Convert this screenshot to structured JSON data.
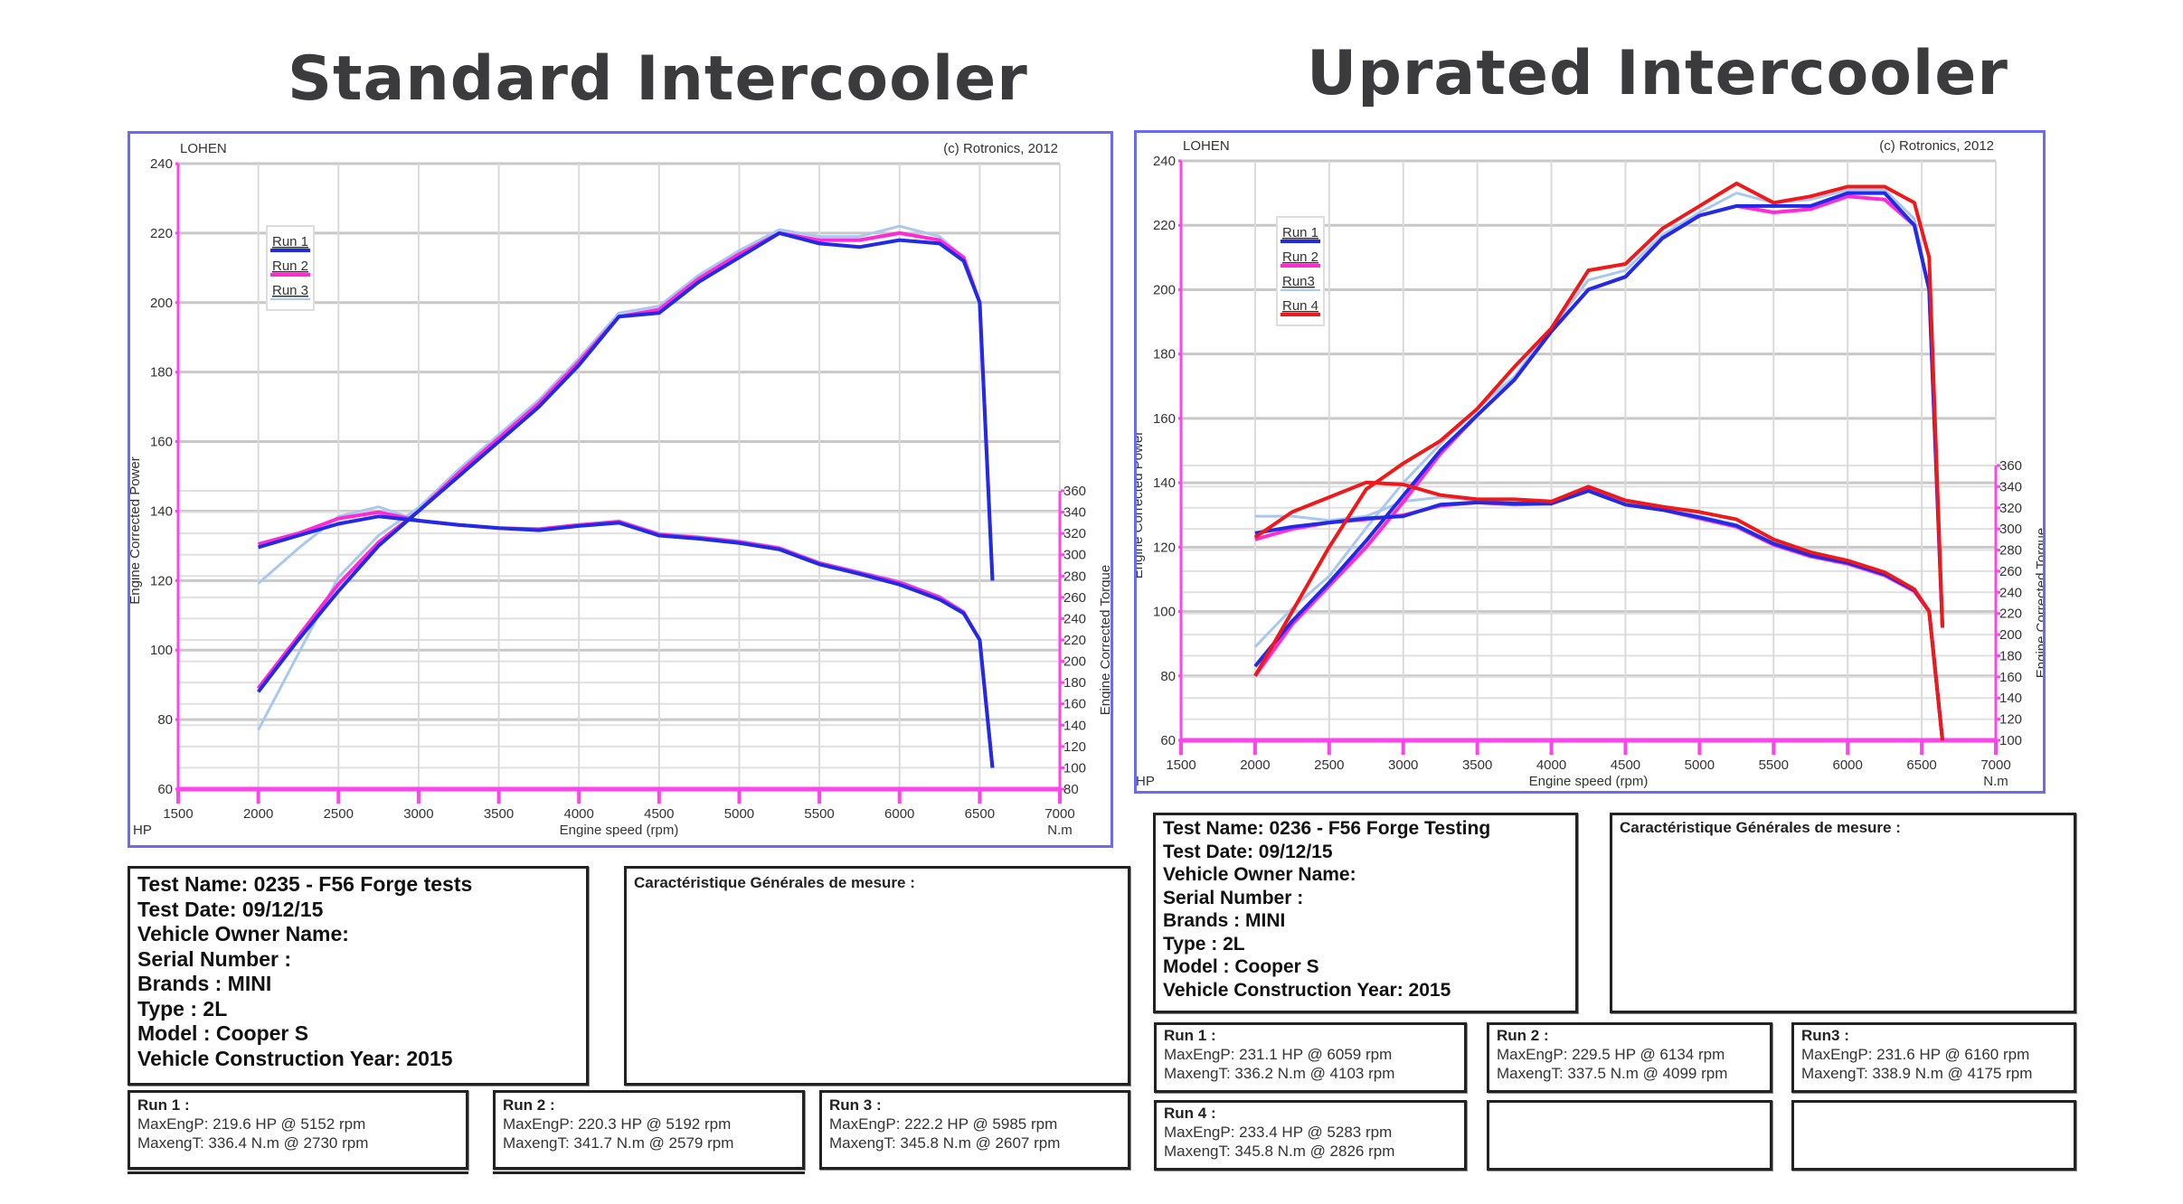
{
  "left": {
    "title": "Standard Intercooler",
    "chart": {
      "brand": "LOHEN",
      "copyright": "(c) Rotronics, 2012",
      "xlabel": "Engine speed (rpm)",
      "ylabel_left": "Engine Corrected Power",
      "ylabel_right": "Engine Corrected Torque",
      "unit_left": "HP",
      "unit_right": "N.m",
      "legend": [
        "Run 1",
        "Run 2",
        "Run 3"
      ]
    },
    "info": {
      "test_name": "Test Name: 0235 - F56 Forge tests",
      "test_date": "Test Date: 09/12/15",
      "owner": "Vehicle Owner Name:",
      "serial": "Serial Number  :",
      "brand": "Brands  : MINI",
      "type": "Type  : 2L",
      "model": "Model  : Cooper S",
      "year": "Vehicle Construction Year: 2015"
    },
    "characteristics_title": "Caractéristique Générales de mesure :",
    "runs": [
      {
        "title": "Run 1 :",
        "power": "MaxEngP: 219.6 HP @ 5152 rpm",
        "torque": "MaxengT: 336.4 N.m @ 2730 rpm"
      },
      {
        "title": "Run 2 :",
        "power": "MaxEngP: 220.3 HP @ 5192 rpm",
        "torque": "MaxengT: 341.7 N.m @ 2579 rpm"
      },
      {
        "title": "Run 3 :",
        "power": "MaxEngP: 222.2 HP @ 5985 rpm",
        "torque": "MaxengT: 345.8 N.m @ 2607 rpm"
      }
    ]
  },
  "right": {
    "title": "Uprated Intercooler",
    "chart": {
      "brand": "LOHEN",
      "copyright": "(c) Rotronics, 2012",
      "xlabel": "Engine speed (rpm)",
      "ylabel_left": "Engine Corrected Power",
      "ylabel_right": "Engine Corrected Torque",
      "unit_left": "HP",
      "unit_right": "N.m",
      "legend": [
        "Run 1",
        "Run 2",
        "Run3",
        "Run 4"
      ]
    },
    "info": {
      "test_name": "Test Name: 0236 - F56 Forge Testing",
      "test_date": "Test Date: 09/12/15",
      "owner": "Vehicle Owner Name:",
      "serial": "Serial Number  :",
      "brand": "Brands  : MINI",
      "type": "Type  : 2L",
      "model": "Model  : Cooper S",
      "year": "Vehicle Construction Year: 2015"
    },
    "characteristics_title": "Caractéristique Générales de mesure :",
    "runs": [
      {
        "title": "Run 1 :",
        "power": "MaxEngP: 231.1 HP @ 6059 rpm",
        "torque": "MaxengT: 336.2 N.m @ 4103 rpm"
      },
      {
        "title": "Run 2 :",
        "power": "MaxEngP: 229.5 HP @ 6134 rpm",
        "torque": "MaxengT: 337.5 N.m @ 4099 rpm"
      },
      {
        "title": "Run3 :",
        "power": "MaxEngP: 231.6 HP @ 6160 rpm",
        "torque": "MaxengT: 338.9 N.m @ 4175 rpm"
      },
      {
        "title": "Run 4 :",
        "power": "MaxEngP: 233.4 HP @ 5283 rpm",
        "torque": "MaxengT: 345.8 N.m @ 2826 rpm"
      }
    ]
  },
  "colors": {
    "run1": "#1f2be6",
    "run2": "#ff2ad4",
    "run3": "#a8c8f0",
    "run4": "#f01818",
    "axis": "#ff44ee",
    "frame": "#6a6af2",
    "grid": "#d0d0d0"
  },
  "chart_data": [
    {
      "type": "line",
      "title": "Standard Intercooler",
      "xlabel": "Engine speed (rpm)",
      "ylabel": "Engine Corrected Power (HP)",
      "y2label": "Engine Corrected Torque (N.m)",
      "xlim": [
        1500,
        7000
      ],
      "ylim": [
        60,
        240
      ],
      "y2lim": [
        80,
        360
      ],
      "x_ticks": [
        1500,
        2000,
        2500,
        3000,
        3500,
        4000,
        4500,
        5000,
        5500,
        6000,
        6500,
        7000
      ],
      "y_ticks": [
        60,
        80,
        100,
        120,
        140,
        160,
        180,
        200,
        220,
        240
      ],
      "y2_ticks": [
        80,
        100,
        120,
        140,
        160,
        180,
        200,
        220,
        240,
        260,
        280,
        300,
        320,
        340,
        360
      ],
      "grid": true,
      "legend_position": "upper-left",
      "x": [
        2000,
        2250,
        2500,
        2750,
        3000,
        3250,
        3500,
        3750,
        4000,
        4250,
        4500,
        4750,
        5000,
        5250,
        5500,
        5750,
        6000,
        6250,
        6400,
        6500,
        6580
      ],
      "series": [
        {
          "name": "Run 1 Power",
          "axis": "HP",
          "values": [
            88,
            103,
            117,
            130,
            140,
            150,
            160,
            170,
            182,
            196,
            197,
            206,
            213,
            220,
            217,
            216,
            218,
            217,
            212,
            200,
            120
          ]
        },
        {
          "name": "Run 2 Power",
          "axis": "HP",
          "values": [
            89,
            104,
            119,
            131,
            140,
            151,
            161,
            171,
            183,
            196,
            198,
            207,
            214,
            220,
            218,
            218,
            220,
            218,
            213,
            200,
            120
          ]
        },
        {
          "name": "Run 3 Power",
          "axis": "HP",
          "values": [
            77,
            99,
            121,
            133,
            141,
            152,
            162,
            172,
            184,
            197,
            199,
            208,
            215,
            221,
            219,
            219,
            222,
            219,
            213,
            200,
            120
          ]
        },
        {
          "name": "Run 1 Torque",
          "axis": "N.m",
          "values": [
            307,
            318,
            329,
            336,
            332,
            328,
            325,
            323,
            327,
            330,
            318,
            315,
            311,
            305,
            291,
            282,
            272,
            258,
            245,
            220,
            100
          ]
        },
        {
          "name": "Run 2 Torque",
          "axis": "N.m",
          "values": [
            310,
            320,
            334,
            340,
            332,
            328,
            325,
            324,
            328,
            331,
            319,
            316,
            312,
            306,
            292,
            283,
            274,
            260,
            246,
            220,
            100
          ]
        },
        {
          "name": "Run 3 Torque",
          "axis": "N.m",
          "values": [
            273,
            306,
            336,
            345,
            332,
            328,
            325,
            324,
            328,
            332,
            320,
            317,
            313,
            307,
            293,
            284,
            275,
            261,
            247,
            220,
            100
          ]
        }
      ]
    },
    {
      "type": "line",
      "title": "Uprated Intercooler",
      "xlabel": "Engine speed (rpm)",
      "ylabel": "Engine Corrected Power (HP)",
      "y2label": "Engine Corrected Torque (N.m)",
      "xlim": [
        1500,
        7000
      ],
      "ylim": [
        60,
        240
      ],
      "y2lim": [
        100,
        360
      ],
      "x_ticks": [
        1500,
        2000,
        2500,
        3000,
        3500,
        4000,
        4500,
        5000,
        5500,
        6000,
        6500,
        7000
      ],
      "y_ticks": [
        60,
        80,
        100,
        120,
        140,
        160,
        180,
        200,
        220,
        240
      ],
      "y2_ticks": [
        100,
        120,
        140,
        160,
        180,
        200,
        220,
        240,
        260,
        280,
        300,
        320,
        340,
        360
      ],
      "grid": true,
      "legend_position": "upper-left",
      "x": [
        2000,
        2250,
        2500,
        2750,
        3000,
        3250,
        3500,
        3750,
        4000,
        4250,
        4500,
        4750,
        5000,
        5250,
        5500,
        5750,
        6000,
        6250,
        6450,
        6550,
        6640
      ],
      "series": [
        {
          "name": "Run 1 Power",
          "axis": "HP",
          "values": [
            83,
            97,
            109,
            122,
            136,
            150,
            161,
            172,
            187,
            200,
            204,
            216,
            223,
            226,
            226,
            226,
            230,
            230,
            220,
            200,
            95
          ]
        },
        {
          "name": "Run 2 Power",
          "axis": "HP",
          "values": [
            80,
            96,
            108,
            120,
            134,
            149,
            161,
            172,
            187,
            200,
            204,
            216,
            223,
            226,
            224,
            225,
            229,
            228,
            220,
            200,
            95
          ]
        },
        {
          "name": "Run 3 Power",
          "axis": "HP",
          "values": [
            89,
            101,
            111,
            126,
            140,
            152,
            163,
            173,
            188,
            203,
            206,
            217,
            224,
            230,
            227,
            228,
            231,
            231,
            222,
            200,
            95
          ]
        },
        {
          "name": "Run 4 Power",
          "axis": "HP",
          "values": [
            80,
            100,
            120,
            138,
            146,
            153,
            163,
            176,
            188,
            206,
            208,
            219,
            226,
            233,
            227,
            229,
            232,
            232,
            227,
            210,
            95
          ]
        },
        {
          "name": "Run 1 Torque",
          "axis": "N.m",
          "values": [
            296,
            302,
            306,
            310,
            312,
            323,
            325,
            324,
            324,
            336,
            323,
            318,
            311,
            303,
            286,
            275,
            268,
            257,
            242,
            222,
            100
          ]
        },
        {
          "name": "Run 2 Torque",
          "axis": "N.m",
          "values": [
            290,
            300,
            306,
            309,
            313,
            322,
            325,
            323,
            324,
            337,
            323,
            318,
            310,
            302,
            285,
            274,
            267,
            256,
            241,
            222,
            100
          ]
        },
        {
          "name": "Run 3 Torque",
          "axis": "N.m",
          "values": [
            312,
            312,
            308,
            312,
            326,
            330,
            327,
            325,
            326,
            338,
            325,
            319,
            312,
            304,
            287,
            276,
            269,
            258,
            243,
            222,
            100
          ]
        },
        {
          "name": "Run 4 Torque",
          "axis": "N.m",
          "values": [
            292,
            316,
            330,
            344,
            342,
            332,
            328,
            328,
            326,
            340,
            327,
            321,
            316,
            309,
            290,
            278,
            270,
            259,
            243,
            222,
            100
          ]
        }
      ]
    }
  ]
}
